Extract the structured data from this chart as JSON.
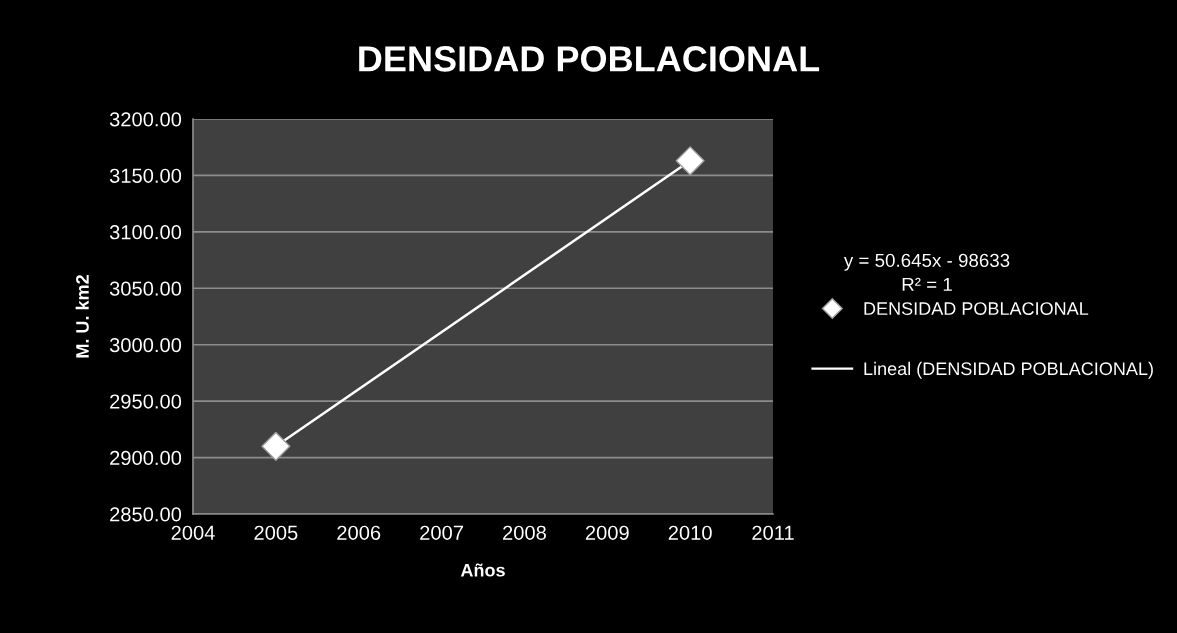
{
  "chart_data": {
    "type": "scatter",
    "title": "DENSIDAD POBLACIONAL",
    "xlabel": "Años",
    "ylabel": "M. U. km2",
    "annotations": [
      "y = 50.645x - 98633",
      "R² = 1"
    ],
    "x": [
      2005,
      2010
    ],
    "series": [
      {
        "name": "DENSIDAD POBLACIONAL",
        "color": "#ffffff",
        "marker": "diamond",
        "values": [
          2910,
          3163
        ]
      },
      {
        "name": "Lineal (DENSIDAD POBLACIONAL)",
        "type": "line",
        "color": "#ffffff",
        "line_style": "solid",
        "x": [
          2005,
          2010
        ],
        "values": [
          2910,
          3163
        ]
      }
    ],
    "xlim": [
      2004,
      2011
    ],
    "xticks": [
      2004,
      2005,
      2006,
      2007,
      2008,
      2009,
      2010,
      2011
    ],
    "ylim": [
      2850,
      3200
    ],
    "yticks": [
      {
        "value": 2850,
        "label": "2850.00"
      },
      {
        "value": 2900,
        "label": "2900.00"
      },
      {
        "value": 2950,
        "label": "2950.00"
      },
      {
        "value": 3000,
        "label": "3000.00"
      },
      {
        "value": 3050,
        "label": "3050.00"
      },
      {
        "value": 3100,
        "label": "3100.00"
      },
      {
        "value": 3150,
        "label": "3150.00"
      },
      {
        "value": 3200,
        "label": "3200.00"
      }
    ],
    "grid": "y",
    "legend": "right"
  }
}
